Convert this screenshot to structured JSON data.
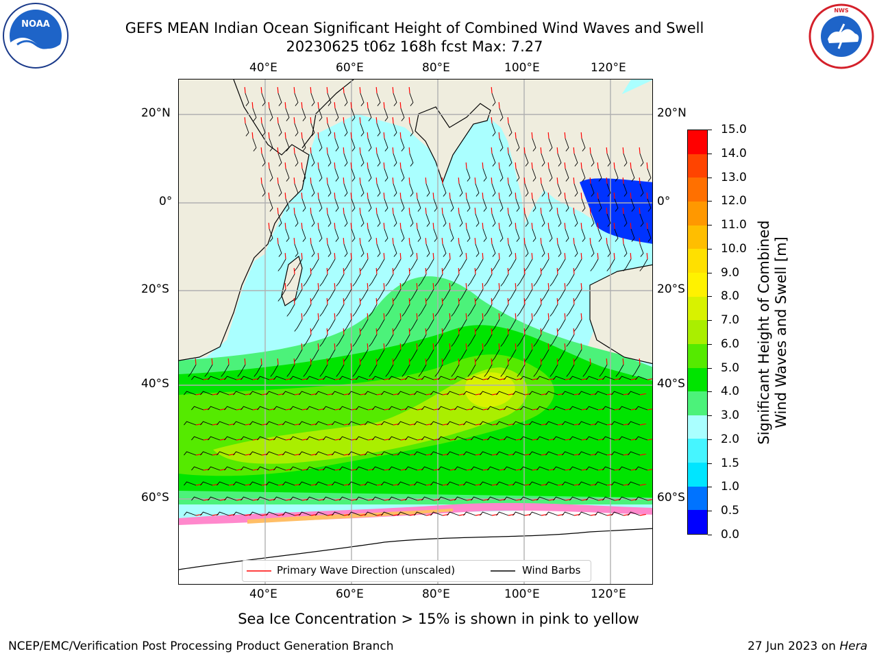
{
  "header": {
    "title_line1": "GEFS MEAN Indian Ocean Significant Height of Combined Wind Waves and Swell",
    "title_line2": "20230625 t06z 168h fcst   Max: 7.27"
  },
  "logos": {
    "left_logo": "noara-logo",
    "left_logo_text": "NOAA",
    "right_logo": "nws-logo",
    "right_logo_text": "NATIONAL WEATHER SERVICE"
  },
  "map": {
    "lon_ticks": [
      "40°E",
      "60°E",
      "80°E",
      "100°E",
      "120°E"
    ],
    "lat_ticks": [
      "20°N",
      "0°",
      "20°S",
      "40°S",
      "60°S"
    ],
    "grid": true,
    "land_color": "#efedde",
    "ice_note": "Sea Ice Concentration > 15% is shown in pink to yellow"
  },
  "colorbar": {
    "label_line1": "Significant Height of Combined",
    "label_line2": "Wind Waves and Swell [m]",
    "ticks": [
      "0.0",
      "0.5",
      "1.0",
      "1.5",
      "2.0",
      "3.0",
      "4.0",
      "5.0",
      "6.0",
      "7.0",
      "8.0",
      "9.0",
      "10.0",
      "11.0",
      "12.0",
      "13.0",
      "14.0",
      "15.0"
    ],
    "colors": [
      "#0000ff",
      "#0073ff",
      "#00e5ff",
      "#46f5ff",
      "#aaffff",
      "#4cf27a",
      "#00e400",
      "#55ea00",
      "#aaee00",
      "#d8f200",
      "#fff200",
      "#ffe000",
      "#ffbe00",
      "#ff9800",
      "#ff7000",
      "#ff4400",
      "#ff0000"
    ]
  },
  "legend": {
    "wave_label": "Primary Wave Direction (unscaled)",
    "wind_label": "Wind Barbs",
    "wave_color": "#ff0000",
    "wind_color": "#000000"
  },
  "footer": {
    "left": "NCEP/EMC/Verification Post Processing Product Generation Branch",
    "right_date": "27 Jun 2023 on ",
    "right_host": "Hera"
  }
}
